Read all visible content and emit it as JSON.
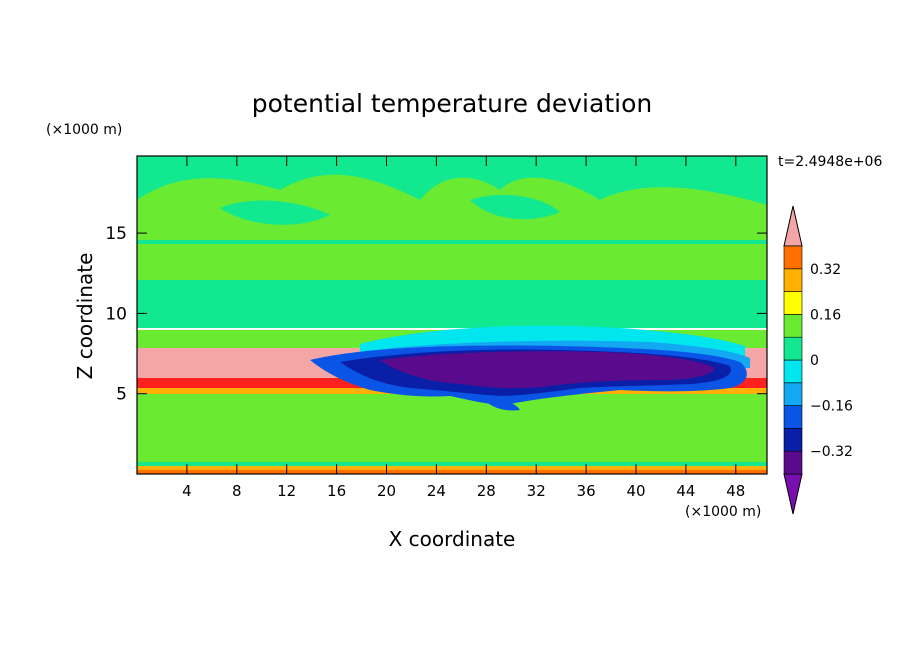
{
  "chart_data": {
    "type": "heatmap",
    "title": "potential temperature deviation",
    "xlabel": "X coordinate",
    "ylabel": "Z coordinate",
    "x_unit": "(×1000 m)",
    "y_unit": "(×1000 m)",
    "time_label": "t=2.4948e+06",
    "xlim": [
      0,
      50.5
    ],
    "ylim": [
      0,
      19.8
    ],
    "xticks": [
      4,
      8,
      12,
      16,
      20,
      24,
      28,
      32,
      36,
      40,
      44,
      48
    ],
    "xtick_labels": [
      "4",
      "8",
      "12",
      "16",
      "20",
      "24",
      "28",
      "32",
      "36",
      "40",
      "44",
      "48"
    ],
    "yticks": [
      5,
      10,
      15
    ],
    "ytick_labels": [
      "5",
      "10",
      "15"
    ],
    "colorbar": {
      "levels": [
        -0.4,
        -0.32,
        -0.24,
        -0.16,
        -0.08,
        0,
        0.08,
        0.16,
        0.24,
        0.32,
        0.4
      ],
      "tick_values": [
        0.32,
        0.16,
        0,
        -0.16,
        -0.32
      ],
      "tick_labels": [
        "0.32",
        "0.16",
        "0",
        "−0.16",
        "−0.32"
      ],
      "under_color": "#7a0fb0",
      "over_color": "#f4a6a6",
      "colors": [
        "#5a0a8c",
        "#0a1fa8",
        "#0a55e6",
        "#12a8f2",
        "#00e6ee",
        "#12e890",
        "#6aeb32",
        "#ffff00",
        "#ffb000",
        "#ff7000",
        "#ff2020"
      ]
    },
    "features": [
      {
        "region": "stable layer above z≈5",
        "value": 0.4,
        "x_range": [
          0,
          50.5
        ],
        "z_range": [
          5.5,
          8
        ]
      },
      {
        "region": "cold pool",
        "value": -0.36,
        "x_range": [
          18,
          46
        ],
        "z_range": [
          4.5,
          8
        ]
      },
      {
        "region": "lower troposphere",
        "value": 0.04,
        "z_range": [
          0,
          5
        ]
      },
      {
        "region": "upper troposphere",
        "value": 0.06,
        "z_range": [
          8.5,
          19.8
        ]
      }
    ]
  }
}
